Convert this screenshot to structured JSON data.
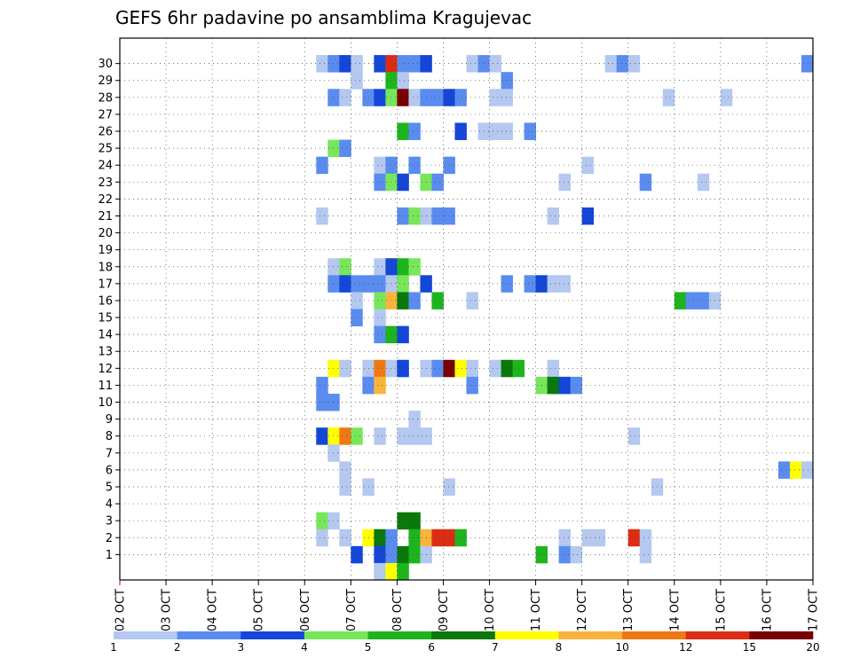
{
  "chart_data": {
    "type": "heatmap",
    "title": "GEFS 6hr padavine po ansamblima Kragujevac",
    "y_tick_labels": [
      "1",
      "2",
      "3",
      "4",
      "5",
      "6",
      "7",
      "8",
      "9",
      "10",
      "11",
      "12",
      "13",
      "14",
      "15",
      "16",
      "17",
      "18",
      "19",
      "20",
      "21",
      "22",
      "23",
      "24",
      "25",
      "26",
      "27",
      "28",
      "29",
      "30"
    ],
    "x_tick_labels": [
      "02 OCT",
      "03 OCT",
      "04 OCT",
      "05 OCT",
      "06 OCT",
      "07 OCT",
      "08 OCT",
      "09 OCT",
      "10 OCT",
      "11 OCT",
      "12 OCT",
      "13 OCT",
      "14 OCT",
      "15 OCT",
      "16 OCT",
      "17 OCT"
    ],
    "colorbar": {
      "labels": [
        "1",
        "2",
        "3",
        "4",
        "5",
        "6",
        "7",
        "8",
        "10",
        "12",
        "15",
        "20"
      ],
      "colors": [
        "#b4c8f0",
        "#5a8cf0",
        "#1446d7",
        "#78e65a",
        "#1eb41e",
        "#0a780a",
        "#ffff00",
        "#fab43c",
        "#f07814",
        "#dc2d14",
        "#780000"
      ]
    },
    "grid": true,
    "cells": [
      [
        30,
        17,
        0
      ],
      [
        30,
        18,
        1
      ],
      [
        30,
        19,
        2
      ],
      [
        30,
        20,
        0
      ],
      [
        30,
        22,
        2
      ],
      [
        30,
        23,
        9
      ],
      [
        30,
        24,
        1
      ],
      [
        30,
        25,
        1
      ],
      [
        30,
        26,
        2
      ],
      [
        30,
        30,
        0
      ],
      [
        30,
        31,
        1
      ],
      [
        30,
        32,
        0
      ],
      [
        30,
        42,
        0
      ],
      [
        30,
        43,
        1
      ],
      [
        30,
        44,
        0
      ],
      [
        30,
        59,
        1
      ],
      [
        29,
        20,
        0
      ],
      [
        29,
        23,
        4
      ],
      [
        29,
        24,
        0
      ],
      [
        29,
        33,
        1
      ],
      [
        28,
        18,
        1
      ],
      [
        28,
        19,
        0
      ],
      [
        28,
        21,
        1
      ],
      [
        28,
        22,
        2
      ],
      [
        28,
        23,
        3
      ],
      [
        28,
        24,
        10
      ],
      [
        28,
        25,
        0
      ],
      [
        28,
        26,
        1
      ],
      [
        28,
        27,
        1
      ],
      [
        28,
        28,
        2
      ],
      [
        28,
        29,
        1
      ],
      [
        28,
        32,
        0
      ],
      [
        28,
        33,
        0
      ],
      [
        28,
        47,
        0
      ],
      [
        28,
        52,
        0
      ],
      [
        26,
        24,
        4
      ],
      [
        26,
        25,
        1
      ],
      [
        26,
        29,
        2
      ],
      [
        26,
        31,
        0
      ],
      [
        26,
        32,
        0
      ],
      [
        26,
        33,
        0
      ],
      [
        26,
        35,
        1
      ],
      [
        25,
        18,
        3
      ],
      [
        25,
        19,
        1
      ],
      [
        24,
        17,
        1
      ],
      [
        24,
        22,
        0
      ],
      [
        24,
        23,
        1
      ],
      [
        24,
        25,
        1
      ],
      [
        24,
        28,
        1
      ],
      [
        24,
        40,
        0
      ],
      [
        23,
        22,
        1
      ],
      [
        23,
        23,
        3
      ],
      [
        23,
        24,
        2
      ],
      [
        23,
        26,
        3
      ],
      [
        23,
        27,
        1
      ],
      [
        23,
        38,
        0
      ],
      [
        23,
        45,
        1
      ],
      [
        23,
        50,
        0
      ],
      [
        21,
        17,
        0
      ],
      [
        21,
        24,
        1
      ],
      [
        21,
        25,
        3
      ],
      [
        21,
        26,
        0
      ],
      [
        21,
        27,
        1
      ],
      [
        21,
        28,
        1
      ],
      [
        21,
        37,
        0
      ],
      [
        21,
        40,
        2
      ],
      [
        18,
        18,
        0
      ],
      [
        18,
        19,
        3
      ],
      [
        18,
        22,
        0
      ],
      [
        18,
        23,
        2
      ],
      [
        18,
        24,
        4
      ],
      [
        18,
        25,
        3
      ],
      [
        17,
        18,
        1
      ],
      [
        17,
        19,
        2
      ],
      [
        17,
        20,
        1
      ],
      [
        17,
        21,
        1
      ],
      [
        17,
        22,
        1
      ],
      [
        17,
        23,
        0
      ],
      [
        17,
        24,
        3
      ],
      [
        17,
        26,
        2
      ],
      [
        17,
        33,
        1
      ],
      [
        17,
        35,
        1
      ],
      [
        17,
        36,
        2
      ],
      [
        17,
        37,
        0
      ],
      [
        17,
        38,
        0
      ],
      [
        16,
        20,
        0
      ],
      [
        16,
        22,
        3
      ],
      [
        16,
        23,
        7
      ],
      [
        16,
        24,
        5
      ],
      [
        16,
        25,
        1
      ],
      [
        16,
        27,
        4
      ],
      [
        16,
        30,
        0
      ],
      [
        16,
        48,
        4
      ],
      [
        16,
        49,
        1
      ],
      [
        16,
        50,
        1
      ],
      [
        16,
        51,
        0
      ],
      [
        15,
        20,
        1
      ],
      [
        15,
        22,
        0
      ],
      [
        14,
        22,
        1
      ],
      [
        14,
        23,
        4
      ],
      [
        14,
        24,
        2
      ],
      [
        12,
        18,
        6
      ],
      [
        12,
        19,
        0
      ],
      [
        12,
        21,
        0
      ],
      [
        12,
        22,
        8
      ],
      [
        12,
        23,
        0
      ],
      [
        12,
        24,
        2
      ],
      [
        12,
        26,
        0
      ],
      [
        12,
        27,
        1
      ],
      [
        12,
        28,
        10
      ],
      [
        12,
        29,
        6
      ],
      [
        12,
        30,
        0
      ],
      [
        12,
        32,
        0
      ],
      [
        12,
        33,
        5
      ],
      [
        12,
        34,
        4
      ],
      [
        12,
        37,
        0
      ],
      [
        11,
        17,
        1
      ],
      [
        11,
        21,
        1
      ],
      [
        11,
        22,
        7
      ],
      [
        11,
        30,
        1
      ],
      [
        11,
        36,
        3
      ],
      [
        11,
        37,
        5
      ],
      [
        11,
        38,
        2
      ],
      [
        11,
        39,
        1
      ],
      [
        10,
        17,
        1
      ],
      [
        10,
        18,
        1
      ],
      [
        9,
        25,
        0
      ],
      [
        8,
        17,
        2
      ],
      [
        8,
        18,
        6
      ],
      [
        8,
        19,
        8
      ],
      [
        8,
        20,
        3
      ],
      [
        8,
        22,
        0
      ],
      [
        8,
        24,
        0
      ],
      [
        8,
        25,
        0
      ],
      [
        8,
        26,
        0
      ],
      [
        8,
        44,
        0
      ],
      [
        7,
        18,
        0
      ],
      [
        6,
        19,
        0
      ],
      [
        6,
        57,
        1
      ],
      [
        6,
        58,
        6
      ],
      [
        6,
        59,
        0
      ],
      [
        5,
        19,
        0
      ],
      [
        5,
        21,
        0
      ],
      [
        5,
        28,
        0
      ],
      [
        5,
        46,
        0
      ],
      [
        3,
        17,
        3
      ],
      [
        3,
        18,
        0
      ],
      [
        3,
        24,
        5
      ],
      [
        3,
        25,
        5
      ],
      [
        2,
        17,
        0
      ],
      [
        2,
        19,
        0
      ],
      [
        2,
        21,
        6
      ],
      [
        2,
        22,
        5
      ],
      [
        2,
        23,
        1
      ],
      [
        2,
        25,
        4
      ],
      [
        2,
        26,
        7
      ],
      [
        2,
        27,
        9
      ],
      [
        2,
        28,
        9
      ],
      [
        2,
        29,
        4
      ],
      [
        2,
        38,
        0
      ],
      [
        2,
        40,
        0
      ],
      [
        2,
        41,
        0
      ],
      [
        2,
        44,
        9
      ],
      [
        2,
        45,
        0
      ],
      [
        1,
        20,
        2
      ],
      [
        1,
        22,
        2
      ],
      [
        1,
        23,
        1
      ],
      [
        1,
        24,
        5
      ],
      [
        1,
        25,
        4
      ],
      [
        1,
        26,
        0
      ],
      [
        1,
        36,
        4
      ],
      [
        1,
        38,
        1
      ],
      [
        1,
        39,
        0
      ],
      [
        1,
        45,
        0
      ],
      [
        0,
        22,
        0
      ],
      [
        0,
        23,
        6
      ],
      [
        0,
        24,
        4
      ]
    ]
  }
}
